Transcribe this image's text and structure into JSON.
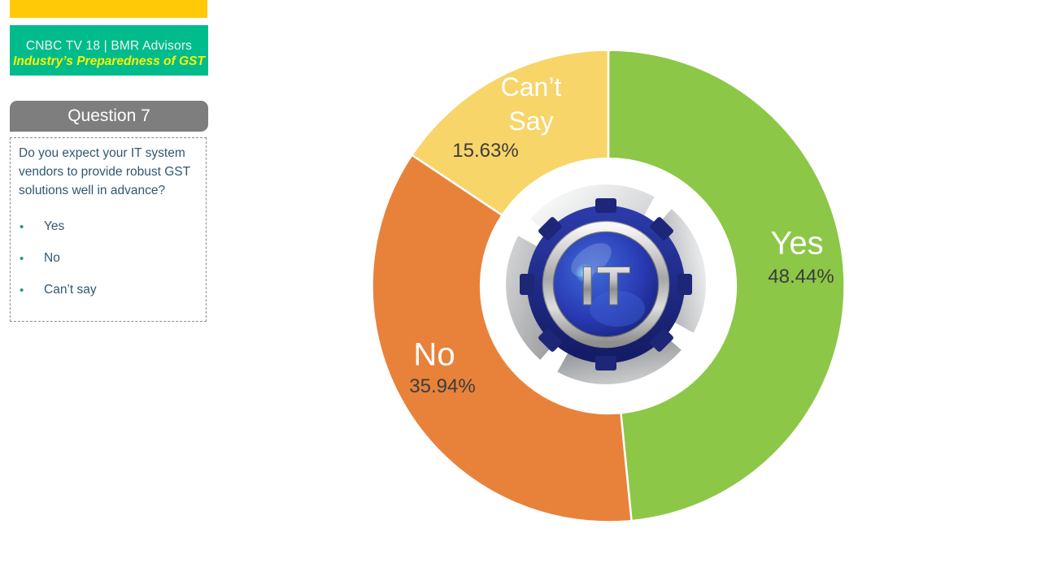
{
  "header": {
    "top_bar_color": "#FFC907",
    "brand_box_color": "#00BC8D",
    "brand_line1": "CNBC TV 18 | BMR Advisors",
    "brand_line2": "Industry’s Preparedness of GST",
    "brand_line2_color": "#F8F400"
  },
  "question": {
    "header_label": "Question 7",
    "header_bg": "#7E7E7E",
    "text": "Do you expect your IT system vendors to provide robust GST solutions well in advance?",
    "text_color": "#2F5872",
    "bullet_color": "#2E8C8C",
    "options": [
      "Yes",
      "No",
      "Can’t say"
    ]
  },
  "chart_data": {
    "type": "pie",
    "subtype": "donut",
    "title": "",
    "categories": [
      "Yes",
      "No",
      "Can’t Say"
    ],
    "values": [
      48.44,
      35.94,
      15.63
    ],
    "slices": [
      {
        "label": "Yes",
        "value": 48.44,
        "value_label": "48.44%",
        "color": "#8CC747"
      },
      {
        "label": "No",
        "value": 35.94,
        "value_label": "35.94%",
        "color": "#E8823A"
      },
      {
        "label": "Can’t Say",
        "value": 15.63,
        "value_label": "15.63%",
        "color": "#F7D569"
      }
    ],
    "start_angle_deg": 0,
    "direction": "clockwise",
    "inner_radius_ratio": 0.54,
    "divider_color": "#FFFFFF",
    "value_text_color": "#3C3C3C",
    "label_text_color": "#FFFFFF",
    "legend": "none",
    "center_logo_text": "IT"
  }
}
